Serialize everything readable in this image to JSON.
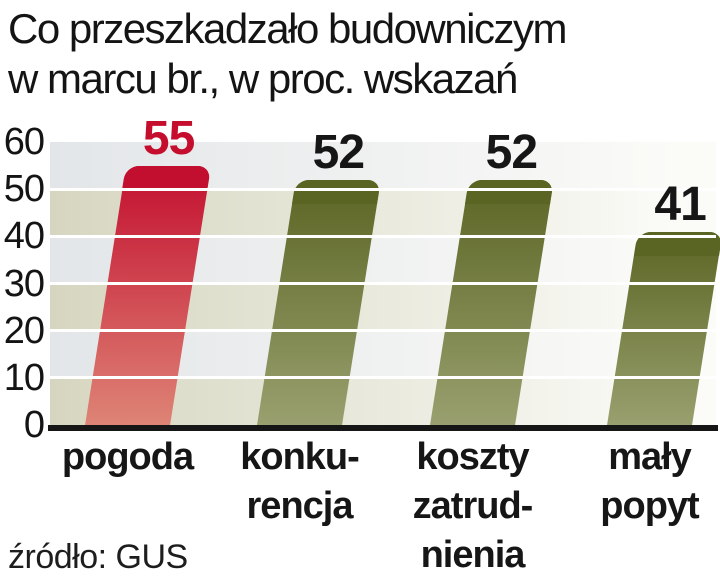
{
  "title": {
    "line1": "Co przeszkadzało budowniczym",
    "line2": "w marcu br., w proc. wskazań"
  },
  "source_note": "źródło: GUS",
  "colors": {
    "accent_red": "#c50d2d",
    "olive": "#5b6523",
    "band_beige": "#d6d6c0",
    "band_gray": "#e3e6e9",
    "band_fade_right": "#fbfbf8",
    "axis_line": "#161616",
    "gridline": "#ffffff",
    "text": "#141414"
  },
  "chart_data": {
    "type": "bar",
    "title": "Co przeszkadzało budowniczym w marcu br., w proc. wskazań",
    "source": "źródło: GUS",
    "categories": [
      "pogoda",
      "konkurencja",
      "koszty zatrudnienia",
      "mały popyt"
    ],
    "category_lines": [
      [
        "pogoda"
      ],
      [
        "konku-",
        "rencja"
      ],
      [
        "koszty",
        "zatrud-",
        "nienia"
      ],
      [
        "mały",
        "popyt"
      ]
    ],
    "values": [
      55,
      52,
      52,
      41
    ],
    "xlabel": "",
    "ylabel": "proc. wskazań",
    "ylim": [
      0,
      60
    ],
    "yticks": [
      60,
      50,
      40,
      30,
      20,
      10,
      0
    ],
    "grid": "horizontal white lines every 10, striped background bands fading to white on the right",
    "legend": "none",
    "bar_colors": [
      {
        "top": "#c30f2f",
        "bottom": "#de8476"
      },
      {
        "top": "#5b6523",
        "bottom": "#99a06f"
      },
      {
        "top": "#5b6523",
        "bottom": "#99a06f"
      },
      {
        "top": "#5b6523",
        "bottom": "#99a06f"
      }
    ],
    "value_label_colors": [
      "#c50d2d",
      "#161616",
      "#161616",
      "#161616"
    ]
  }
}
